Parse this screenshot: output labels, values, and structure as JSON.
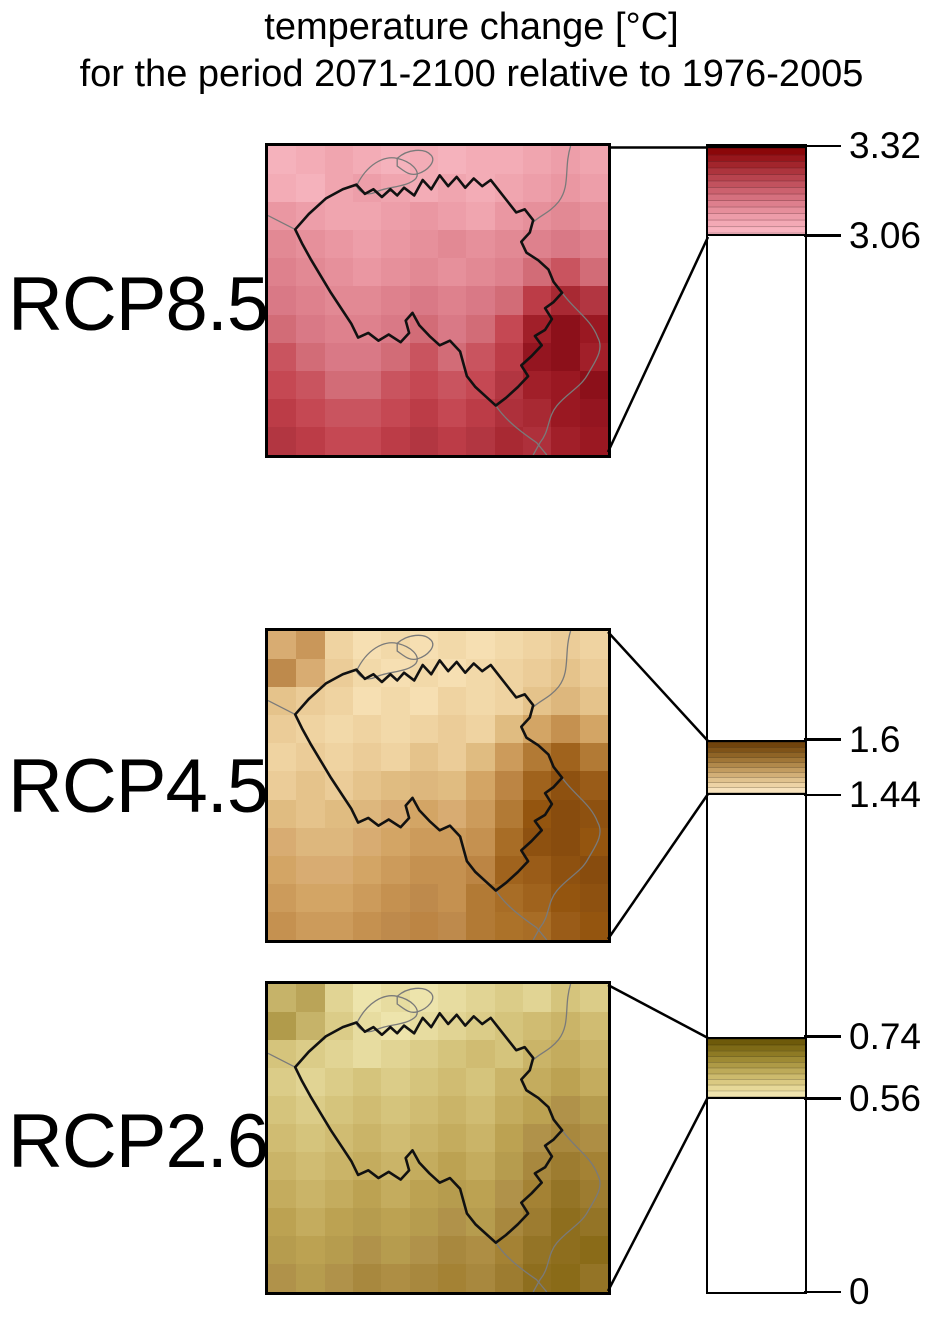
{
  "title": {
    "line1": "temperature change [°C]",
    "line2": "for the period 2071-2100 relative to 1976-2005"
  },
  "colors": {
    "background": "#ffffff",
    "line": "#000000",
    "neighbor_border": "#7a7a7a",
    "text": "#000000"
  },
  "colorbar": {
    "min": 0,
    "max": 3.32,
    "ticks": [
      {
        "label": "3.32",
        "value": 3.32
      },
      {
        "label": "3.06",
        "value": 3.06
      },
      {
        "label": "1.6",
        "value": 1.6
      },
      {
        "label": "1.44",
        "value": 1.44
      },
      {
        "label": "0.74",
        "value": 0.74
      },
      {
        "label": "0.56",
        "value": 0.56
      },
      {
        "label": "0",
        "value": 0
      }
    ]
  },
  "scenarios": [
    {
      "id": "rcp85",
      "label": "RCP8.5",
      "value_min": 3.06,
      "value_max": 3.32,
      "band_colors": [
        "#8B0709",
        "#97161B",
        "#A2252C",
        "#AD343D",
        "#B8434E",
        "#C2525E",
        "#CC616E",
        "#D5707E",
        "#DE7F8D",
        "#E68E9B",
        "#ED9CA9",
        "#F3A9B5",
        "#F8B3BF"
      ],
      "map_grid": [
        [
          "#F5B2BC",
          "#F3ACB6",
          "#F0A5AF",
          "#F3ACB6",
          "#F5B2BC",
          "#F3ACB6",
          "#F5B2BC",
          "#F3ACB6",
          "#F3ACB6",
          "#F0A5AF",
          "#ED9EA9",
          "#F0A5AF"
        ],
        [
          "#F3ACB6",
          "#F5B2BC",
          "#F0A5AF",
          "#ED9EA9",
          "#F0A5AF",
          "#F3ACB6",
          "#F0A5AF",
          "#F3ACB6",
          "#F0A5AF",
          "#ED9EA9",
          "#EA97A2",
          "#ED9EA9"
        ],
        [
          "#EA97A2",
          "#ED9EA9",
          "#F0A5AF",
          "#F0A5AF",
          "#ED9EA9",
          "#EA97A2",
          "#ED9EA9",
          "#F0A5AF",
          "#EA97A2",
          "#E6909B",
          "#E28994",
          "#E6909B"
        ],
        [
          "#E28994",
          "#E6909B",
          "#EA97A2",
          "#ED9EA9",
          "#EA97A2",
          "#E6909B",
          "#E28994",
          "#E6909B",
          "#E28994",
          "#DE818D",
          "#D97986",
          "#DE818D"
        ],
        [
          "#DE818D",
          "#E28994",
          "#E6909B",
          "#EA97A2",
          "#E6909B",
          "#E28994",
          "#E6909B",
          "#E28994",
          "#DE818D",
          "#D26C77",
          "#C9545F",
          "#D26C77"
        ],
        [
          "#D97986",
          "#DE818D",
          "#E28994",
          "#E28994",
          "#DE818D",
          "#D97986",
          "#DE818D",
          "#D97986",
          "#D26C77",
          "#BC3C47",
          "#A82933",
          "#B23641"
        ],
        [
          "#D26C77",
          "#D97986",
          "#DE818D",
          "#DE818D",
          "#D97986",
          "#D26C77",
          "#D97986",
          "#D26C77",
          "#C54853",
          "#A11F29",
          "#8C101A",
          "#9A1822"
        ],
        [
          "#C9545F",
          "#D26C77",
          "#D97986",
          "#D97986",
          "#D26C77",
          "#C9545F",
          "#D26C77",
          "#C9545F",
          "#BC3C47",
          "#941520",
          "#8C101A",
          "#A11F29"
        ],
        [
          "#C54853",
          "#C9545F",
          "#D26C77",
          "#D26C77",
          "#C9545F",
          "#C54853",
          "#C9545F",
          "#C54853",
          "#B23641",
          "#A11F29",
          "#9A1822",
          "#8C101A"
        ],
        [
          "#BC3C47",
          "#C54853",
          "#C9545F",
          "#C9545F",
          "#C54853",
          "#BC3C47",
          "#C54853",
          "#BC3C47",
          "#AE303B",
          "#A82933",
          "#9A1822",
          "#941520"
        ],
        [
          "#B23641",
          "#BC3C47",
          "#C54853",
          "#C54853",
          "#BC3C47",
          "#B23641",
          "#BC3C47",
          "#B23641",
          "#A82933",
          "#AE303B",
          "#A11F29",
          "#9A1822"
        ]
      ]
    },
    {
      "id": "rcp45",
      "label": "RCP4.5",
      "value_min": 1.44,
      "value_max": 1.6,
      "band_colors": [
        "#70430C",
        "#7F5318",
        "#8F6426",
        "#A07637",
        "#B1894B",
        "#C29C60",
        "#D2AF77",
        "#E0C28E",
        "#EDD3A5",
        "#F7E2BC"
      ],
      "map_grid": [
        [
          "#D8AC72",
          "#C9975A",
          "#EFD3A1",
          "#F6DFB2",
          "#F2D9A9",
          "#F6DFB2",
          "#F2D9A9",
          "#F6DFB2",
          "#F2D9A9",
          "#EFD3A1",
          "#EBCC98",
          "#EFD3A1"
        ],
        [
          "#BE8A4C",
          "#D8AC72",
          "#EBCC98",
          "#F2D9A9",
          "#F6DFB2",
          "#F2D9A9",
          "#F6DFB2",
          "#F2D9A9",
          "#EFD3A1",
          "#EBCC98",
          "#E5C38B",
          "#EBCC98"
        ],
        [
          "#E5C38B",
          "#EBCC98",
          "#EFD3A1",
          "#F6DFB2",
          "#F2D9A9",
          "#F6DFB2",
          "#EFD3A1",
          "#F2D9A9",
          "#EFD3A1",
          "#E5C38B",
          "#DDB77D",
          "#E5C38B"
        ],
        [
          "#EBCC98",
          "#EFD3A1",
          "#F2D9A9",
          "#EFD3A1",
          "#F2D9A9",
          "#EFD3A1",
          "#EBCC98",
          "#EFD3A1",
          "#E0BC81",
          "#D3A565",
          "#C59150",
          "#D3A565"
        ],
        [
          "#EFD3A1",
          "#EBCC98",
          "#EFD3A1",
          "#EBCC98",
          "#EFD3A1",
          "#E5C38B",
          "#EBCC98",
          "#E0BC81",
          "#CC9B5B",
          "#B27A35",
          "#A0631D",
          "#B27A35"
        ],
        [
          "#EBCC98",
          "#E5C38B",
          "#EBCC98",
          "#E5C38B",
          "#E0BC81",
          "#DDB77D",
          "#E0BC81",
          "#D3A565",
          "#BC8544",
          "#A0631D",
          "#8E5110",
          "#9A5C18"
        ],
        [
          "#E0BC81",
          "#E5C38B",
          "#E0BC81",
          "#DDB77D",
          "#D8AC72",
          "#D3A565",
          "#D8AC72",
          "#CC9B5B",
          "#B27A35",
          "#94550F",
          "#884C0E",
          "#8E5110"
        ],
        [
          "#D8AC72",
          "#DDB77D",
          "#DDB77D",
          "#D8AC72",
          "#D3A565",
          "#CC9B5B",
          "#CC9B5B",
          "#C59150",
          "#A86D26",
          "#8E5110",
          "#884C0E",
          "#94550F"
        ],
        [
          "#D3A565",
          "#D8AC72",
          "#D8AC72",
          "#D3A565",
          "#CC9B5B",
          "#C59150",
          "#C59150",
          "#BC8544",
          "#A0631D",
          "#9A5C18",
          "#8E5110",
          "#884C0E"
        ],
        [
          "#CC9B5B",
          "#D3A565",
          "#D3A565",
          "#CC9B5B",
          "#C59150",
          "#BE8A4C",
          "#C59150",
          "#B27A35",
          "#A86D26",
          "#A0631D",
          "#94550F",
          "#8E5110"
        ],
        [
          "#C59150",
          "#CC9B5B",
          "#CC9B5B",
          "#C59150",
          "#BE8A4C",
          "#BC8544",
          "#BE8A4C",
          "#B27A35",
          "#AC7229",
          "#A86D26",
          "#9A5C18",
          "#94550F"
        ]
      ]
    },
    {
      "id": "rcp26",
      "label": "RCP2.6",
      "value_min": 0.56,
      "value_max": 0.74,
      "band_colors": [
        "#6E5A0A",
        "#7E6A16",
        "#8E7A24",
        "#9E8A34",
        "#AE9A46",
        "#BDAA59",
        "#CCBA6D",
        "#DAC982",
        "#E6D898",
        "#F0E4AE"
      ],
      "map_grid": [
        [
          "#C6B369",
          "#BAA458",
          "#E1D494",
          "#EDE4AC",
          "#E7DCA0",
          "#EDE4AC",
          "#E7DCA0",
          "#E1D494",
          "#DBCC88",
          "#E1D494",
          "#D5C47C",
          "#DBCC88"
        ],
        [
          "#B19B4B",
          "#C6B369",
          "#DBCC88",
          "#E7DCA0",
          "#EDE4AC",
          "#E7DCA0",
          "#E1D494",
          "#DBCC88",
          "#D5C47C",
          "#D0BC72",
          "#CAB468",
          "#D0BC72"
        ],
        [
          "#D5C47C",
          "#DBCC88",
          "#E1D494",
          "#E7DCA0",
          "#E1D494",
          "#DBCC88",
          "#D5C47C",
          "#D0BC72",
          "#D5C47C",
          "#CAB468",
          "#C4AC5E",
          "#CAB468"
        ],
        [
          "#DBCC88",
          "#E1D494",
          "#DBCC88",
          "#D5C47C",
          "#DBCC88",
          "#D5C47C",
          "#D0BC72",
          "#D5C47C",
          "#CAB468",
          "#C4AC5E",
          "#BCA252",
          "#C4AC5E"
        ],
        [
          "#D5C47C",
          "#DBCC88",
          "#D5C47C",
          "#D0BC72",
          "#D5C47C",
          "#D0BC72",
          "#CAB468",
          "#D0BC72",
          "#C4AC5E",
          "#BCA252",
          "#B0924A",
          "#B69C4E"
        ],
        [
          "#D0BC72",
          "#D5C47C",
          "#D0BC72",
          "#CAB468",
          "#D0BC72",
          "#CAB468",
          "#C4AC5E",
          "#CAB468",
          "#BCA252",
          "#B0924A",
          "#A8883E",
          "#AE8E44"
        ],
        [
          "#CAB468",
          "#D0BC72",
          "#CAB468",
          "#C4AC5E",
          "#CAB468",
          "#C4AC5E",
          "#BCA252",
          "#C4AC5E",
          "#B69C4E",
          "#A8883E",
          "#9D7C30",
          "#A48234"
        ],
        [
          "#C4AC5E",
          "#CAB468",
          "#C4AC5E",
          "#BCA252",
          "#C4AC5E",
          "#BCA252",
          "#B69C4E",
          "#BCA252",
          "#B0924A",
          "#A48234",
          "#947426",
          "#9D7C30"
        ],
        [
          "#BCA252",
          "#C4AC5E",
          "#BCA252",
          "#B69C4E",
          "#BCA252",
          "#B69C4E",
          "#B0924A",
          "#B69C4E",
          "#A8883E",
          "#9D7C30",
          "#8E6E1E",
          "#947426"
        ],
        [
          "#B69C4E",
          "#BCA252",
          "#B69C4E",
          "#B0924A",
          "#B69C4E",
          "#B0924A",
          "#A8883E",
          "#AE8E44",
          "#A48234",
          "#947426",
          "#8E6E1E",
          "#8A6B18"
        ],
        [
          "#B0924A",
          "#B69C4E",
          "#B0924A",
          "#A8883E",
          "#AE8E44",
          "#A8883E",
          "#A48234",
          "#A8883E",
          "#9D7C30",
          "#8E6E1E",
          "#8A6B18",
          "#947426"
        ]
      ]
    }
  ],
  "chart_data": {
    "type": "heatmap",
    "title": "temperature change [°C] for the period 2071-2100 relative to 1976-2005",
    "colorbar_range": [
      0,
      3.32
    ],
    "ticks": [
      3.32,
      3.06,
      1.6,
      1.44,
      0.74,
      0.56,
      0
    ],
    "legend_position": "right",
    "series": [
      {
        "name": "RCP8.5",
        "range_min": 3.06,
        "range_max": 3.32,
        "region": "Belgium"
      },
      {
        "name": "RCP4.5",
        "range_min": 1.44,
        "range_max": 1.6,
        "region": "Belgium"
      },
      {
        "name": "RCP2.6",
        "range_min": 0.56,
        "range_max": 0.74,
        "region": "Belgium"
      }
    ]
  }
}
